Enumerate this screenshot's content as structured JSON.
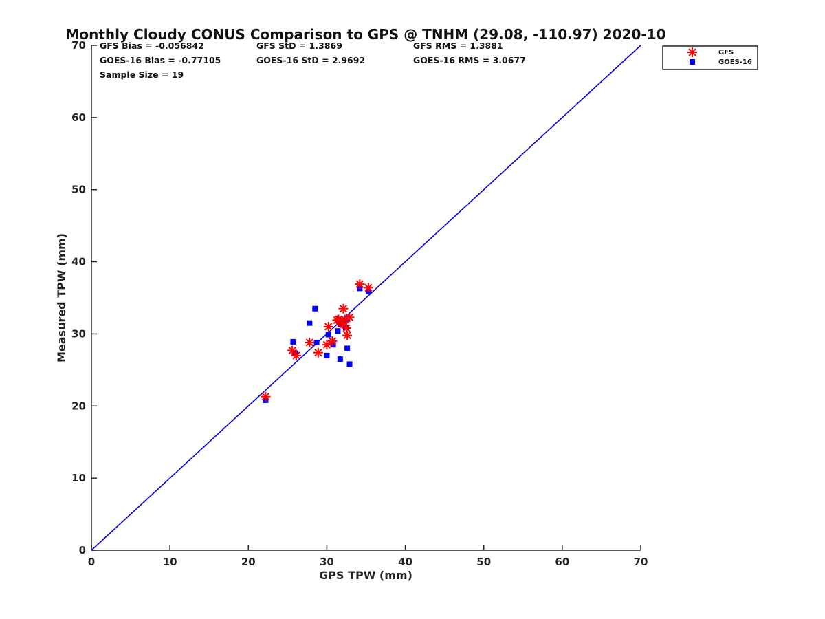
{
  "chart_data": {
    "type": "scatter",
    "title": "Monthly Cloudy CONUS Comparison to GPS @ TNHM (29.08, -110.97) 2020-10",
    "xlabel": "GPS TPW (mm)",
    "ylabel": "Measured TPW (mm)",
    "xlim": [
      0,
      70
    ],
    "ylim": [
      0,
      70
    ],
    "xticks": [
      "0",
      "10",
      "20",
      "30",
      "40",
      "50",
      "60",
      "70"
    ],
    "yticks": [
      "0",
      "10",
      "20",
      "30",
      "40",
      "50",
      "60",
      "70"
    ],
    "grid": false,
    "legend_position": "top-right-outside",
    "stats": {
      "gfs_bias": "GFS Bias = -0.056842",
      "gfs_std": "GFS StD = 1.3869",
      "gfs_rms": "GFS RMS = 1.3881",
      "goes_bias": "GOES-16 Bias = -0.77105",
      "goes_std": "GOES-16 StD = 2.9692",
      "goes_rms": "GOES-16 RMS = 3.0677",
      "sample_size": "Sample Size = 19"
    },
    "reference_line": {
      "x": [
        0,
        70
      ],
      "y": [
        0,
        70
      ],
      "color": "#0000dd"
    },
    "series": [
      {
        "name": "GFS",
        "marker": "asterisk",
        "color": "#ff0000",
        "points": [
          [
            22.2,
            21.3
          ],
          [
            25.6,
            27.7
          ],
          [
            26.1,
            27.0
          ],
          [
            27.8,
            28.8
          ],
          [
            28.9,
            27.4
          ],
          [
            30.0,
            28.5
          ],
          [
            30.7,
            29.0
          ],
          [
            30.2,
            31.0
          ],
          [
            31.5,
            32.0
          ],
          [
            31.8,
            31.5
          ],
          [
            32.1,
            33.5
          ],
          [
            32.3,
            32.0
          ],
          [
            32.5,
            30.8
          ],
          [
            32.6,
            29.8
          ],
          [
            32.9,
            32.3
          ],
          [
            34.2,
            36.9
          ],
          [
            35.3,
            36.4
          ],
          [
            32.0,
            31.6
          ],
          [
            31.3,
            31.9
          ]
        ]
      },
      {
        "name": "GOES-16",
        "marker": "square",
        "color": "#0000ff",
        "points": [
          [
            22.2,
            20.8
          ],
          [
            25.7,
            28.9
          ],
          [
            26.0,
            27.3
          ],
          [
            27.8,
            31.5
          ],
          [
            28.5,
            33.5
          ],
          [
            28.7,
            28.8
          ],
          [
            30.0,
            27.0
          ],
          [
            30.2,
            29.9
          ],
          [
            30.8,
            28.5
          ],
          [
            31.4,
            30.4
          ],
          [
            31.7,
            26.5
          ],
          [
            31.8,
            31.3
          ],
          [
            32.2,
            31.8
          ],
          [
            32.4,
            30.9
          ],
          [
            32.6,
            28.0
          ],
          [
            32.9,
            25.8
          ],
          [
            34.2,
            36.3
          ],
          [
            35.3,
            35.9
          ],
          [
            32.5,
            32.1
          ]
        ]
      }
    ]
  }
}
